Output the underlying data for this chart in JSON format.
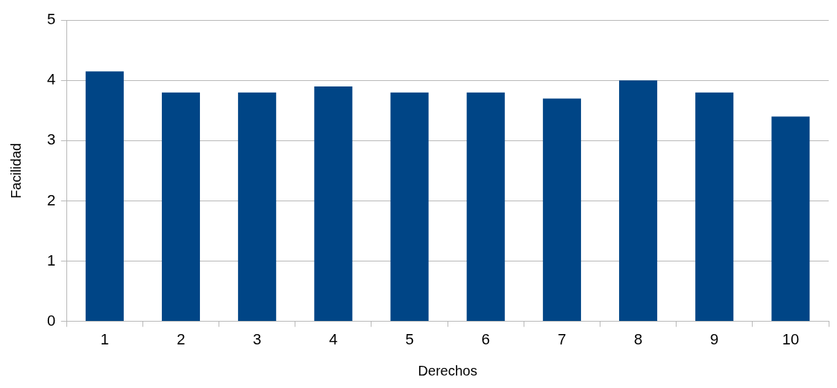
{
  "chart_data": {
    "type": "bar",
    "xlabel": "Derechos",
    "ylabel": "Facilidad",
    "categories": [
      "1",
      "2",
      "3",
      "4",
      "5",
      "6",
      "7",
      "8",
      "9",
      "10"
    ],
    "values": [
      4.15,
      3.8,
      3.8,
      3.9,
      3.8,
      3.8,
      3.7,
      4.0,
      3.8,
      3.4
    ],
    "color": "#004586",
    "ylim": [
      0,
      5
    ],
    "yticks": [
      0,
      1,
      2,
      3,
      4,
      5
    ],
    "grid": "y",
    "legend": false
  }
}
